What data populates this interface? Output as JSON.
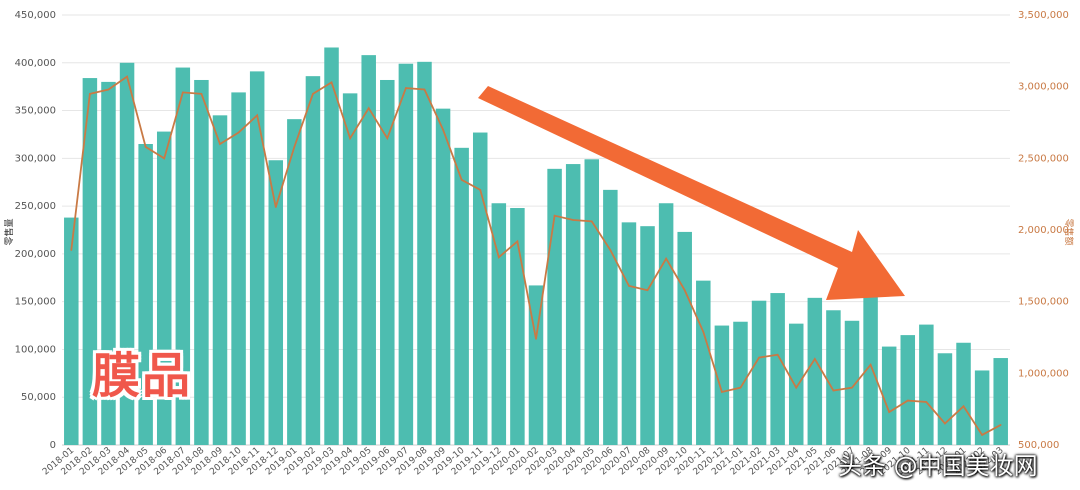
{
  "chart_data": {
    "type": "bar",
    "categories": [
      "2018-01",
      "2018-02",
      "2018-03",
      "2018-04",
      "2018-05",
      "2018-06",
      "2018-07",
      "2018-08",
      "2018-09",
      "2018-10",
      "2018-11",
      "2018-12",
      "2019-01",
      "2019-02",
      "2019-03",
      "2019-04",
      "2019-05",
      "2019-06",
      "2019-07",
      "2019-08",
      "2019-09",
      "2019-10",
      "2019-11",
      "2019-12",
      "2020-01",
      "2020-02",
      "2020-03",
      "2020-04",
      "2020-05",
      "2020-06",
      "2020-07",
      "2020-08",
      "2020-09",
      "2020-10",
      "2020-11",
      "2020-12",
      "2021-01",
      "2021-02",
      "2021-03",
      "2021-04",
      "2021-05",
      "2021-06",
      "2021-07",
      "2021-08",
      "2021-09",
      "2021-10",
      "2021-11",
      "2021-12",
      "2022-01",
      "2022-02",
      "2022-03"
    ],
    "x_labels": [
      "2018-01",
      "2018-02",
      "2018-03",
      "2018-04",
      "2018-05",
      "2018-06",
      "2018-07",
      "2018-08",
      "2018-09",
      "2018-10",
      "2018-11",
      "2018-12",
      "2019-01",
      "2019-02",
      "2019-03",
      "2019-04",
      "2019-05",
      "2019-06",
      "2019-07",
      "2019-08",
      "2019-09",
      "2019-10",
      "2019-11",
      "2019-12",
      "2020-01",
      "2020-02",
      "2020-03",
      "2020-04",
      "2020-05",
      "2020-06",
      "2020-07",
      "2020-08",
      "2020-09",
      "2020-10",
      "2020-11",
      "2020-12",
      "2021-01",
      "2021-02",
      "2021-03",
      "2021-04",
      "2021-05",
      "2021-06",
      "2021-07",
      "2021-08",
      "2021-09",
      "2021-10",
      "2021-11",
      "2021-12",
      "2022-01",
      "2022-02",
      "2022-03"
    ],
    "series": [
      {
        "type": "bar",
        "axis": "left",
        "color": "#4dbdb0",
        "values": [
          238000,
          384000,
          380000,
          400000,
          315000,
          328000,
          395000,
          382000,
          345000,
          369000,
          391000,
          298000,
          341000,
          386000,
          416000,
          368000,
          408000,
          382000,
          399000,
          401000,
          352000,
          311000,
          327000,
          253000,
          248000,
          167000,
          289000,
          294000,
          299000,
          267000,
          233000,
          229000,
          253000,
          223000,
          172000,
          125000,
          129000,
          151000,
          159000,
          127000,
          154000,
          141000,
          130000,
          155000,
          103000,
          115000,
          126000,
          96000,
          107000,
          78000,
          91000
        ]
      },
      {
        "type": "line",
        "axis": "right",
        "color": "#c97a45",
        "values": [
          1860000,
          2950000,
          2980000,
          3070000,
          2580000,
          2500000,
          2960000,
          2950000,
          2600000,
          2680000,
          2800000,
          2160000,
          2580000,
          2950000,
          3030000,
          2640000,
          2850000,
          2640000,
          2990000,
          2980000,
          2700000,
          2350000,
          2280000,
          1810000,
          1920000,
          1240000,
          2100000,
          2070000,
          2060000,
          1860000,
          1610000,
          1580000,
          1800000,
          1580000,
          1290000,
          870000,
          900000,
          1110000,
          1130000,
          900000,
          1100000,
          880000,
          900000,
          1060000,
          730000,
          810000,
          800000,
          650000,
          770000,
          570000,
          640000
        ]
      }
    ],
    "y_ticks": [
      "0",
      "50,000",
      "100,000",
      "150,000",
      "200,000",
      "250,000",
      "300,000",
      "350,000",
      "400,000",
      "450,000"
    ],
    "y2_ticks": [
      "500,000",
      "1,000,000",
      "1,500,000",
      "2,000,000",
      "2,500,000",
      "3,000,000",
      "3,500,000"
    ],
    "ylim": [
      0,
      450000
    ],
    "y2lim": [
      500000,
      3500000
    ],
    "ylabel": "零售量",
    "y2label": "零售额",
    "grid": true,
    "annotation_text": "膜品",
    "arrow_color": "#f26a35"
  },
  "watermark": "头条 @中国美妆网"
}
